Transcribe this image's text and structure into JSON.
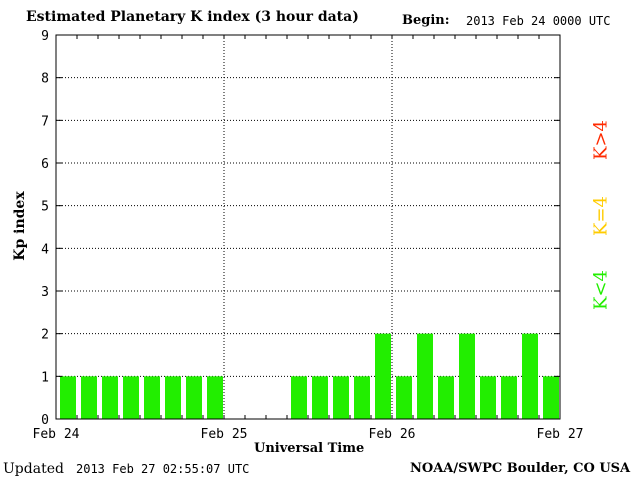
{
  "header": {
    "title": "Estimated Planetary K index (3 hour data)",
    "begin_label": "Begin:",
    "begin_value": "2013 Feb 24 0000 UTC"
  },
  "footer": {
    "updated_label": "Updated",
    "updated_value": "2013 Feb 27 02:55:07 UTC",
    "credit": "NOAA/SWPC Boulder, CO USA"
  },
  "legend": [
    {
      "label": "K>4",
      "color": "#ff2a00"
    },
    {
      "label": "K=4",
      "color": "#ffcc00"
    },
    {
      "label": "K<4",
      "color": "#22ee00"
    }
  ],
  "chart_data": {
    "type": "bar",
    "title": "Estimated Planetary K index (3 hour data)",
    "xlabel": "Universal Time",
    "ylabel": "Kp index",
    "ylim": [
      0,
      9
    ],
    "yticks": [
      "0",
      "1",
      "2",
      "3",
      "4",
      "5",
      "6",
      "7",
      "8",
      "9"
    ],
    "xticks": [
      "Feb 24",
      "Feb 25",
      "Feb 26",
      "Feb 27"
    ],
    "interval_hours": 3,
    "grid": true,
    "bar_color": "#22ee00",
    "values": [
      1,
      1,
      1,
      1,
      1,
      1,
      1,
      1,
      null,
      null,
      null,
      1,
      1,
      1,
      1,
      2,
      1,
      2,
      1,
      2,
      1,
      1,
      2,
      1
    ]
  }
}
